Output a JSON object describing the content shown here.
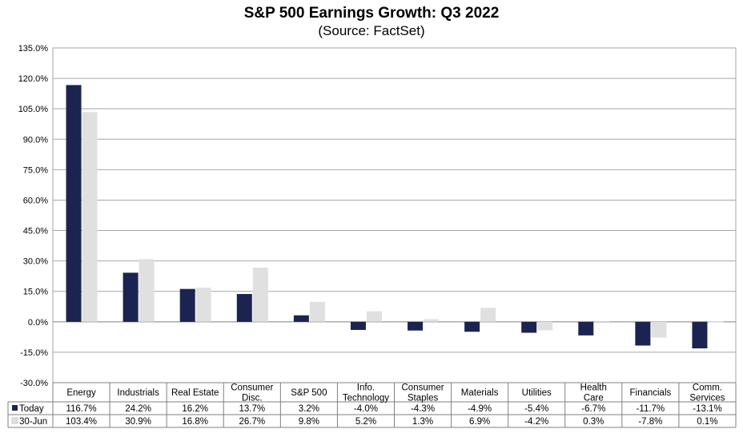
{
  "chart_data": {
    "type": "bar",
    "title": "S&P 500 Earnings Growth:  Q3 2022",
    "subtitle": "(Source: FactSet)",
    "categories": [
      [
        "Energy"
      ],
      [
        "Industrials"
      ],
      [
        "Real Estate"
      ],
      [
        "Consumer",
        "Disc."
      ],
      [
        "S&P 500"
      ],
      [
        "Info.",
        "Technology"
      ],
      [
        "Consumer",
        "Staples"
      ],
      [
        "Materials"
      ],
      [
        "Utilities"
      ],
      [
        "Health",
        "Care"
      ],
      [
        "Financials"
      ],
      [
        "Comm.",
        "Services"
      ]
    ],
    "series": [
      {
        "name": "Today",
        "color": "#1b2450",
        "values": [
          116.7,
          24.2,
          16.2,
          13.7,
          3.2,
          -4.0,
          -4.3,
          -4.9,
          -5.4,
          -6.7,
          -11.7,
          -13.1
        ],
        "labels": [
          "116.7%",
          "24.2%",
          "16.2%",
          "13.7%",
          "3.2%",
          "-4.0%",
          "-4.3%",
          "-4.9%",
          "-5.4%",
          "-6.7%",
          "-11.7%",
          "-13.1%"
        ]
      },
      {
        "name": "30-Jun",
        "color": "#e0e0e0",
        "values": [
          103.4,
          30.9,
          16.8,
          26.7,
          9.8,
          5.2,
          1.3,
          6.9,
          -4.2,
          0.3,
          -7.8,
          0.1
        ],
        "labels": [
          "103.4%",
          "30.9%",
          "16.8%",
          "26.7%",
          "9.8%",
          "5.2%",
          "1.3%",
          "6.9%",
          "-4.2%",
          "0.3%",
          "-7.8%",
          "0.1%"
        ]
      }
    ],
    "ylim": [
      -30,
      135
    ],
    "yticks": [
      -30,
      -15,
      0,
      15,
      30,
      45,
      60,
      75,
      90,
      105,
      120,
      135
    ],
    "ytick_labels": [
      "-30.0%",
      "-15.0%",
      "0.0%",
      "15.0%",
      "30.0%",
      "45.0%",
      "60.0%",
      "75.0%",
      "90.0%",
      "105.0%",
      "120.0%",
      "135.0%"
    ],
    "grid": true,
    "legend": "data-table-left",
    "gridline_color": "#a6a6a6"
  }
}
